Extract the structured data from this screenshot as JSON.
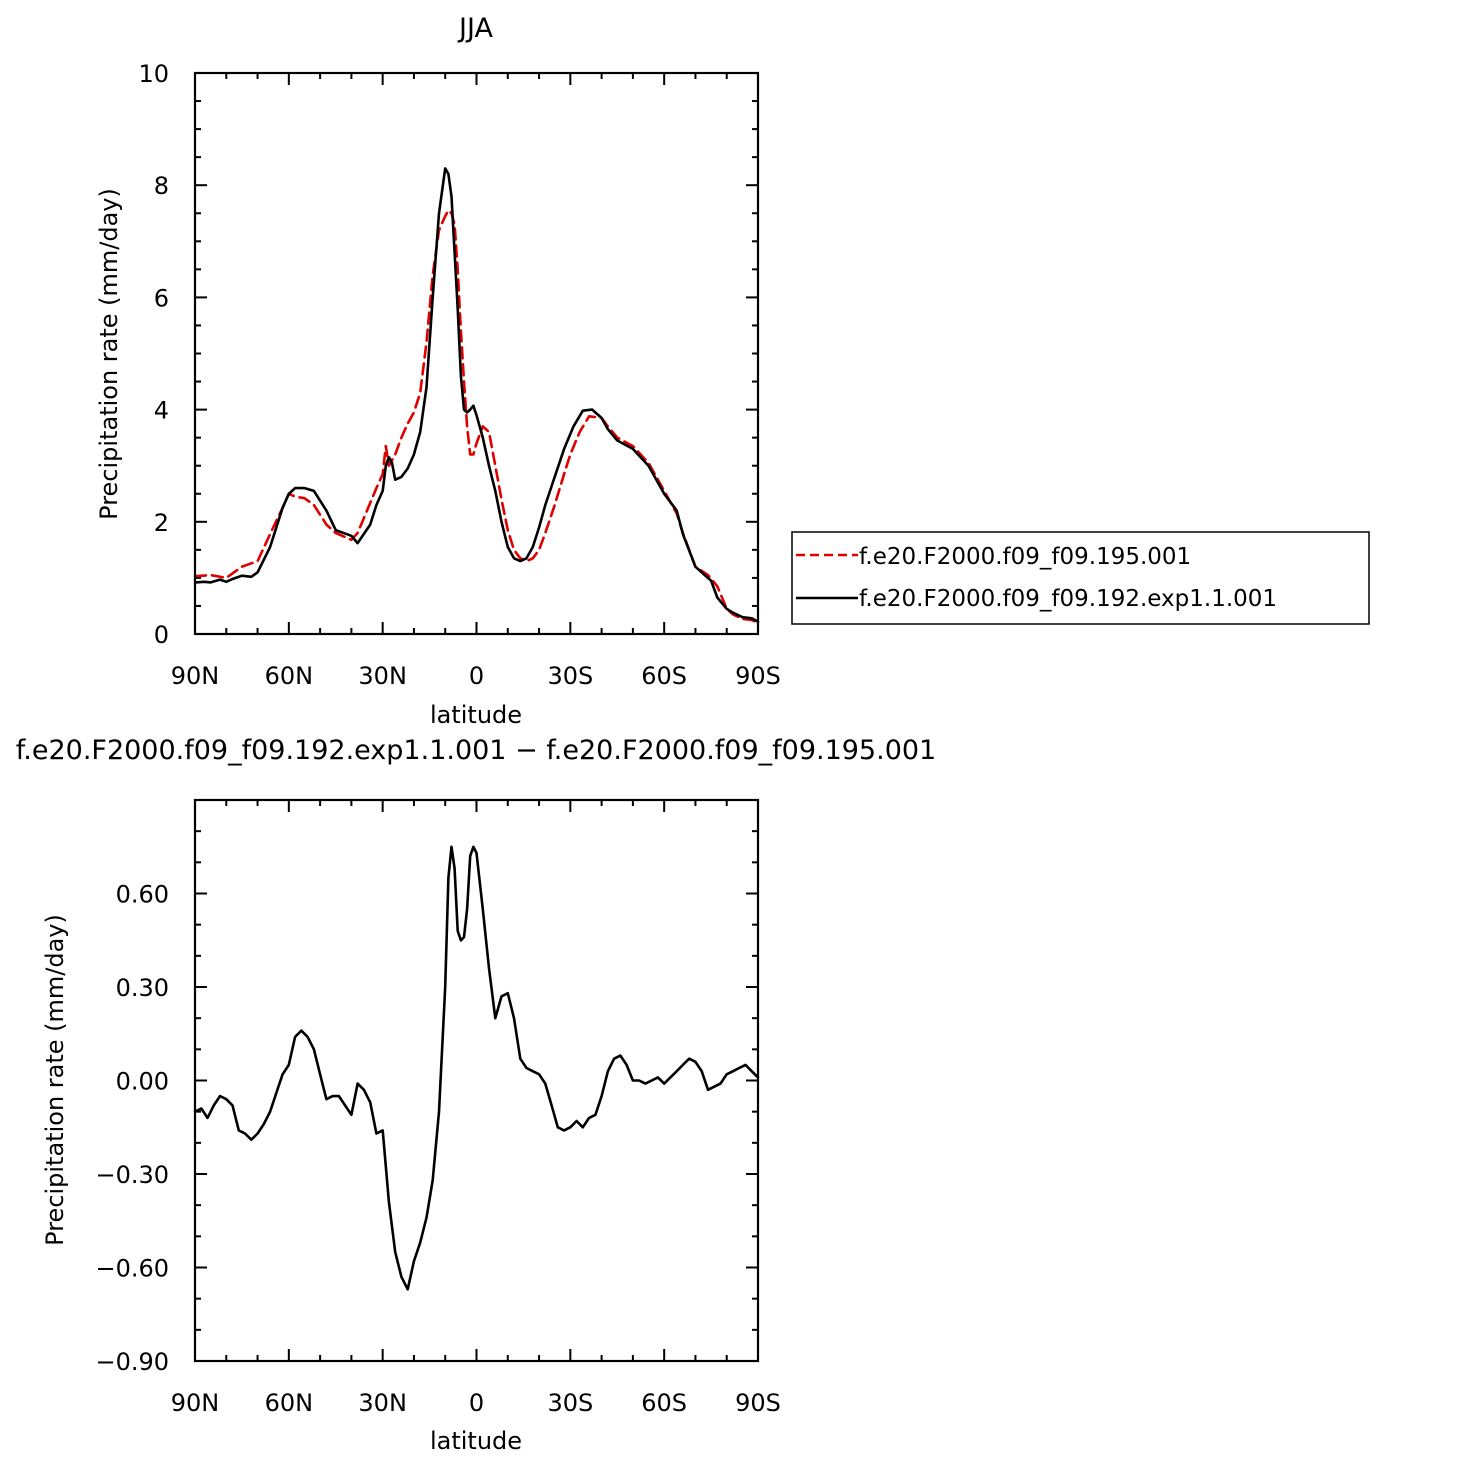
{
  "chart_data": [
    {
      "type": "line",
      "title": "JJA",
      "xlabel": "latitude",
      "ylabel": "Precipitation rate (mm/day)",
      "xlim": [
        90,
        -90
      ],
      "ylim": [
        0,
        10
      ],
      "x_ticks": [
        90,
        60,
        30,
        0,
        -30,
        -60,
        -90
      ],
      "x_tick_labels": [
        "90N",
        "60N",
        "30N",
        "0",
        "30S",
        "60S",
        "90S"
      ],
      "y_ticks": [
        0,
        2,
        4,
        6,
        8,
        10
      ],
      "y_tick_labels": [
        "0",
        "2",
        "4",
        "6",
        "8",
        "10"
      ],
      "grid": false,
      "legend_position": "right",
      "series": [
        {
          "name": "f.e20.F2000.f09_f09.195.001",
          "color": "#e00000",
          "style": "dashed",
          "x": [
            90,
            85,
            80,
            75,
            70,
            65,
            62,
            60,
            58,
            55,
            52,
            48,
            45,
            40,
            38,
            35,
            32,
            30,
            29,
            28,
            26,
            24,
            22,
            20,
            18,
            16,
            14,
            12,
            10,
            9,
            8,
            7,
            6,
            5,
            4,
            3,
            2,
            1,
            0,
            -2,
            -4,
            -6,
            -8,
            -10,
            -12,
            -14,
            -16,
            -18,
            -20,
            -22,
            -25,
            -28,
            -30,
            -33,
            -36,
            -40,
            -42,
            -45,
            -50,
            -55,
            -60,
            -64,
            -66,
            -70,
            -74,
            -77,
            -80,
            -82,
            -85,
            -88,
            -90
          ],
          "y": [
            1.03,
            1.05,
            1.0,
            1.2,
            1.3,
            1.9,
            2.25,
            2.5,
            2.45,
            2.42,
            2.3,
            1.95,
            1.8,
            1.68,
            1.8,
            2.2,
            2.6,
            2.85,
            3.35,
            3.0,
            3.2,
            3.5,
            3.75,
            3.95,
            4.3,
            5.2,
            6.4,
            7.2,
            7.45,
            7.55,
            7.5,
            7.3,
            6.5,
            5.4,
            4.5,
            3.7,
            3.2,
            3.2,
            3.4,
            3.7,
            3.6,
            3.0,
            2.4,
            1.85,
            1.5,
            1.35,
            1.3,
            1.35,
            1.5,
            1.8,
            2.3,
            2.85,
            3.2,
            3.6,
            3.88,
            3.85,
            3.7,
            3.5,
            3.35,
            3.05,
            2.55,
            2.15,
            1.8,
            1.2,
            1.05,
            0.85,
            0.45,
            0.35,
            0.27,
            0.25,
            0.2
          ]
        },
        {
          "name": "f.e20.F2000.f09_f09.192.exp1.1.001",
          "color": "#000000",
          "style": "solid",
          "x": [
            90,
            87,
            85,
            82,
            80,
            78,
            75,
            72,
            70,
            66,
            62,
            60,
            58,
            55,
            52,
            48,
            45,
            40,
            38,
            34,
            32,
            30,
            29,
            28,
            27,
            26,
            24,
            22,
            20,
            18,
            16,
            14,
            12,
            10,
            9,
            8,
            7,
            6,
            5,
            4,
            3,
            2,
            1,
            0,
            -2,
            -4,
            -6,
            -8,
            -10,
            -12,
            -14,
            -16,
            -18,
            -20,
            -22,
            -25,
            -28,
            -31,
            -34,
            -37,
            -40,
            -42,
            -45,
            -50,
            -55,
            -60,
            -64,
            -66,
            -70,
            -73,
            -75,
            -77,
            -80,
            -82,
            -85,
            -88,
            -90
          ],
          "y": [
            0.92,
            0.93,
            0.92,
            0.97,
            0.93,
            0.98,
            1.04,
            1.02,
            1.1,
            1.55,
            2.25,
            2.5,
            2.6,
            2.6,
            2.55,
            2.2,
            1.85,
            1.75,
            1.62,
            1.95,
            2.3,
            2.55,
            3.0,
            3.15,
            3.05,
            2.75,
            2.8,
            2.95,
            3.2,
            3.6,
            4.4,
            6.0,
            7.5,
            8.3,
            8.2,
            7.8,
            6.8,
            5.8,
            4.6,
            4.0,
            3.95,
            4.0,
            4.07,
            3.9,
            3.5,
            3.0,
            2.55,
            2.0,
            1.55,
            1.35,
            1.3,
            1.35,
            1.55,
            1.9,
            2.3,
            2.8,
            3.3,
            3.7,
            3.98,
            4.0,
            3.85,
            3.65,
            3.45,
            3.3,
            3.0,
            2.5,
            2.2,
            1.78,
            1.2,
            1.05,
            0.95,
            0.65,
            0.45,
            0.38,
            0.3,
            0.28,
            0.22
          ]
        }
      ]
    },
    {
      "type": "line",
      "title": "f.e20.F2000.f09_f09.192.exp1.1.001 - f.e20.F2000.f09_f09.195.001",
      "xlabel": "latitude",
      "ylabel": "Precipitation rate (mm/day)",
      "xlim": [
        90,
        -90
      ],
      "ylim": [
        -0.9,
        0.9
      ],
      "x_ticks": [
        90,
        60,
        30,
        0,
        -30,
        -60,
        -90
      ],
      "x_tick_labels": [
        "90N",
        "60N",
        "30N",
        "0",
        "30S",
        "60S",
        "90S"
      ],
      "y_ticks": [
        -0.9,
        -0.6,
        -0.3,
        0.0,
        0.3,
        0.6
      ],
      "y_tick_labels": [
        "-0.90",
        "-0.60",
        "-0.30",
        "0.00",
        "0.30",
        "0.60"
      ],
      "grid": false,
      "series": [
        {
          "color": "#000000",
          "style": "solid",
          "x": [
            90,
            88,
            86,
            84,
            82,
            80,
            78,
            76,
            74,
            72,
            70,
            68,
            66,
            64,
            62,
            60,
            58,
            56,
            54,
            52,
            50,
            48,
            46,
            44,
            42,
            40,
            38,
            36,
            34,
            32,
            30,
            28,
            26,
            24,
            22,
            20,
            18,
            16,
            14,
            12,
            10,
            9,
            8,
            7,
            6,
            5,
            4,
            3,
            2,
            1,
            0,
            -2,
            -4,
            -6,
            -8,
            -10,
            -12,
            -14,
            -16,
            -18,
            -20,
            -22,
            -24,
            -26,
            -28,
            -30,
            -32,
            -34,
            -36,
            -38,
            -40,
            -42,
            -44,
            -46,
            -48,
            -50,
            -52,
            -54,
            -56,
            -58,
            -60,
            -62,
            -64,
            -66,
            -68,
            -70,
            -72,
            -74,
            -76,
            -78,
            -80,
            -82,
            -84,
            -86,
            -88,
            -90
          ],
          "y": [
            -0.1,
            -0.09,
            -0.12,
            -0.08,
            -0.05,
            -0.06,
            -0.08,
            -0.16,
            -0.17,
            -0.19,
            -0.17,
            -0.14,
            -0.1,
            -0.04,
            0.02,
            0.05,
            0.14,
            0.16,
            0.14,
            0.1,
            0.02,
            -0.06,
            -0.05,
            -0.05,
            -0.08,
            -0.11,
            -0.01,
            -0.03,
            -0.07,
            -0.17,
            -0.16,
            -0.39,
            -0.55,
            -0.63,
            -0.67,
            -0.58,
            -0.52,
            -0.44,
            -0.32,
            -0.1,
            0.3,
            0.65,
            0.75,
            0.68,
            0.48,
            0.45,
            0.46,
            0.55,
            0.72,
            0.75,
            0.73,
            0.55,
            0.36,
            0.2,
            0.27,
            0.28,
            0.2,
            0.07,
            0.04,
            0.03,
            0.02,
            -0.01,
            -0.08,
            -0.15,
            -0.16,
            -0.15,
            -0.13,
            -0.15,
            -0.12,
            -0.11,
            -0.05,
            0.03,
            0.07,
            0.08,
            0.05,
            0.0,
            0.0,
            -0.01,
            0.0,
            0.01,
            -0.01,
            0.01,
            0.03,
            0.05,
            0.07,
            0.06,
            0.03,
            -0.03,
            -0.02,
            -0.01,
            0.02,
            0.03,
            0.04,
            0.05,
            0.03,
            0.01
          ]
        }
      ]
    }
  ],
  "top_chart": {
    "title": "JJA",
    "xlabel": "latitude",
    "ylabel": "Precipitation rate (mm/day)",
    "legend": {
      "red_label": "f.e20.F2000.f09_f09.195.001",
      "black_label": "f.e20.F2000.f09_f09.192.exp1.1.001"
    }
  },
  "bottom_chart": {
    "title": "f.e20.F2000.f09_f09.192.exp1.1.001 − f.e20.F2000.f09_f09.195.001",
    "xlabel": "latitude",
    "ylabel": "Precipitation rate (mm/day)"
  }
}
